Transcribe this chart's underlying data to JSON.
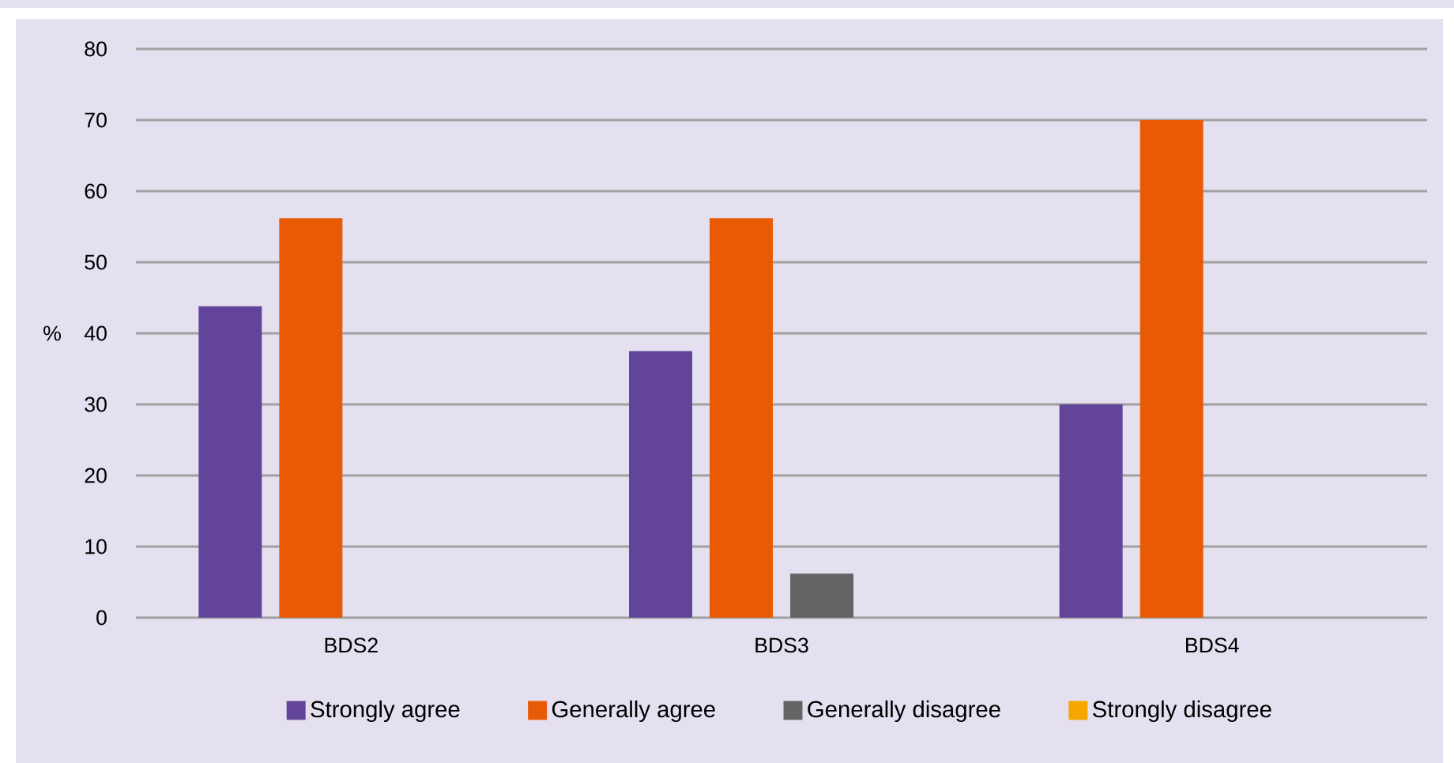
{
  "chart_data": {
    "type": "bar",
    "ylabel": "%",
    "categories": [
      "BDS2",
      "BDS3",
      "BDS4"
    ],
    "series": [
      {
        "name": "Strongly agree",
        "color": "#62459a",
        "values": [
          43.8,
          37.5,
          30
        ]
      },
      {
        "name": "Generally agree",
        "color": "#e85a04",
        "values": [
          56.2,
          56.2,
          70
        ]
      },
      {
        "name": "Generally disagree",
        "color": "#646464",
        "values": [
          0,
          6.2,
          0
        ]
      },
      {
        "name": "Strongly disagree",
        "color": "#f7a600",
        "values": [
          0,
          0,
          0
        ]
      }
    ],
    "ylim": [
      0,
      80
    ],
    "yticks": [
      0,
      10,
      20,
      30,
      40,
      50,
      60,
      70,
      80
    ],
    "grid": "y",
    "legend": "bottom"
  }
}
